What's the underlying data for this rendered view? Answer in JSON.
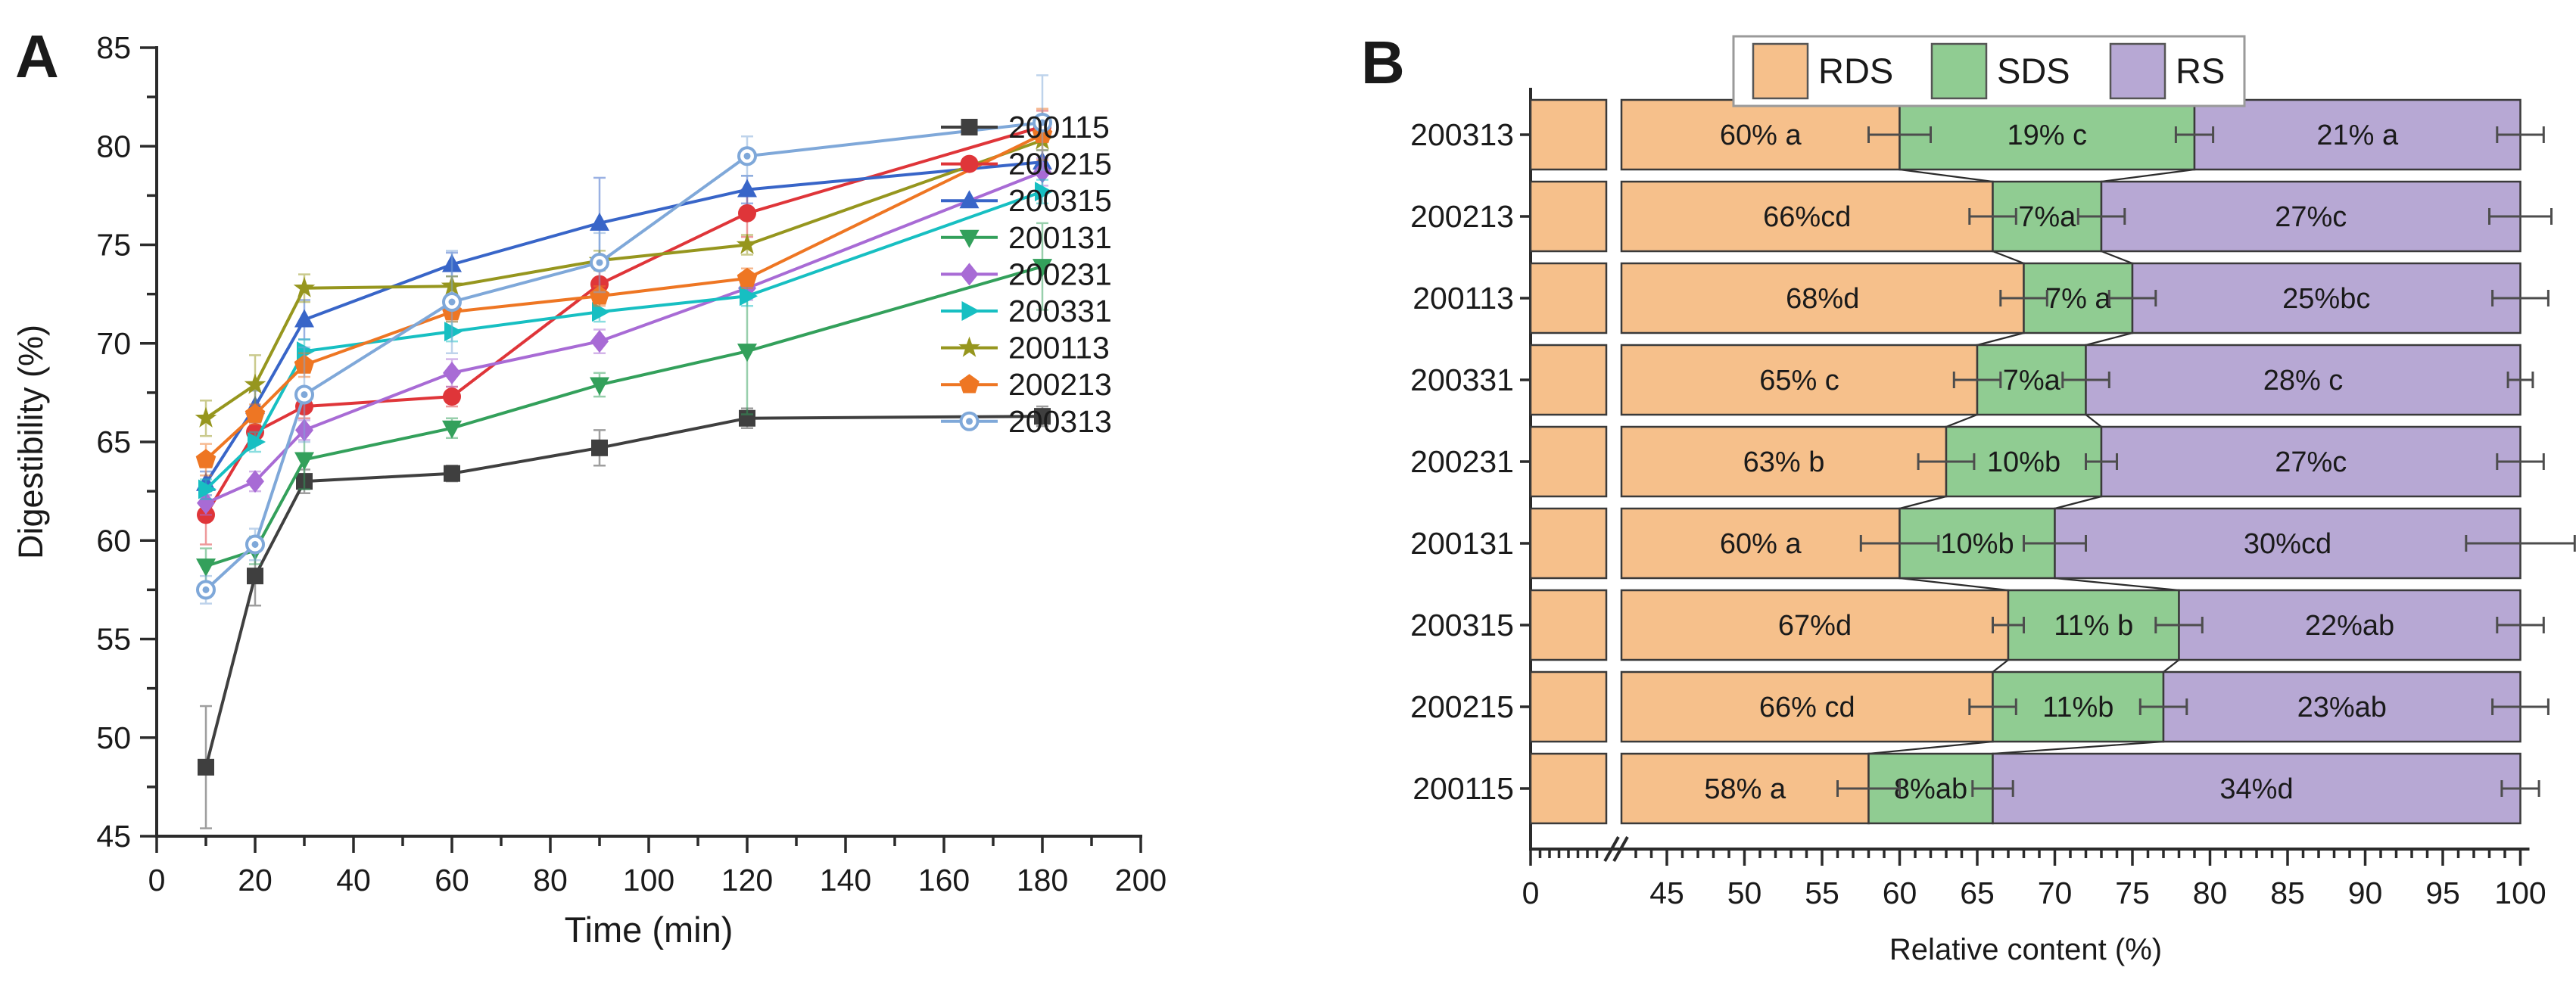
{
  "figure": {
    "background": "#ffffff",
    "panels": [
      "A",
      "B"
    ]
  },
  "chart_data": [
    {
      "type": "line",
      "panel_letter": "A",
      "title": "",
      "xlabel": "Time (min)",
      "ylabel": "Digestibility (%)",
      "x": [
        10,
        20,
        30,
        60,
        90,
        120,
        180
      ],
      "xlim": [
        0,
        200
      ],
      "ylim": [
        45,
        85
      ],
      "x_major_tick": 20,
      "x_minor_tick": 10,
      "y_major_tick": 5,
      "y_minor_tick": 2.5,
      "grid": false,
      "legend_position": "right",
      "series": [
        {
          "name": "200115",
          "color": "#3f3f3f",
          "marker": "square",
          "values": [
            48.5,
            58.2,
            63.0,
            63.4,
            64.7,
            66.2,
            66.3
          ],
          "errors": [
            3.1,
            1.5,
            0.6,
            0.4,
            0.9,
            0.5,
            0.5
          ]
        },
        {
          "name": "200215",
          "color": "#df3539",
          "marker": "circle",
          "values": [
            61.3,
            65.5,
            66.8,
            67.3,
            73.0,
            76.6,
            81.0
          ],
          "errors": [
            1.5,
            0.6,
            0.6,
            0.5,
            0.8,
            1.2,
            0.8
          ]
        },
        {
          "name": "200315",
          "color": "#3865c8",
          "marker": "triangle-up",
          "values": [
            62.9,
            66.8,
            71.2,
            74.0,
            76.1,
            77.8,
            79.2
          ],
          "errors": [
            0.6,
            0.8,
            1.0,
            0.6,
            2.3,
            0.7,
            0.6
          ]
        },
        {
          "name": "200131",
          "color": "#33a05b",
          "marker": "triangle-down",
          "values": [
            58.7,
            59.5,
            64.1,
            65.7,
            67.9,
            69.6,
            73.9
          ],
          "errors": [
            0.9,
            0.7,
            1.5,
            0.5,
            0.6,
            3.2,
            2.2
          ]
        },
        {
          "name": "200231",
          "color": "#a86bd5",
          "marker": "diamond",
          "values": [
            61.9,
            63.0,
            65.6,
            68.5,
            70.1,
            72.8,
            78.7
          ],
          "errors": [
            0.6,
            0.5,
            0.5,
            0.7,
            0.6,
            0.6,
            0.7
          ]
        },
        {
          "name": "200331",
          "color": "#17bfc2",
          "marker": "triangle-right",
          "values": [
            62.6,
            65.0,
            69.6,
            70.6,
            71.6,
            72.4,
            77.7
          ],
          "errors": [
            0.5,
            0.5,
            0.6,
            0.5,
            0.5,
            0.5,
            0.6
          ]
        },
        {
          "name": "200113",
          "color": "#96961e",
          "marker": "star",
          "values": [
            66.2,
            67.9,
            72.8,
            72.9,
            74.2,
            75.0,
            80.3
          ],
          "errors": [
            0.9,
            1.5,
            0.7,
            0.5,
            0.5,
            0.5,
            0.5
          ]
        },
        {
          "name": "200213",
          "color": "#ee7623",
          "marker": "pentagon",
          "values": [
            64.1,
            66.4,
            68.9,
            71.6,
            72.4,
            73.3,
            80.6
          ],
          "errors": [
            0.8,
            0.5,
            0.6,
            0.5,
            0.5,
            0.5,
            1.3
          ]
        },
        {
          "name": "200313",
          "color": "#7fa8d9",
          "marker": "circle-open-dot",
          "values": [
            57.5,
            59.8,
            67.4,
            72.1,
            74.1,
            79.5,
            81.2
          ],
          "errors": [
            0.7,
            0.8,
            2.4,
            2.6,
            1.5,
            1.0,
            2.4
          ]
        }
      ]
    },
    {
      "type": "bar",
      "panel_letter": "B",
      "orientation": "horizontal",
      "stacked": true,
      "title": "",
      "xlabel": "Relative content (%)",
      "axis_break_between": [
        0,
        45
      ],
      "xticks": [
        0,
        45,
        50,
        55,
        60,
        65,
        70,
        75,
        80,
        85,
        90,
        95,
        100
      ],
      "legend_position": "top",
      "categories": [
        "200313",
        "200213",
        "200113",
        "200331",
        "200231",
        "200131",
        "200315",
        "200215",
        "200115"
      ],
      "series": [
        {
          "name": "RDS",
          "color": "#f6c08b",
          "values": [
            60,
            66,
            68,
            65,
            63,
            60,
            67,
            66,
            58
          ],
          "labels": [
            "60% a",
            "66%cd",
            "68%d",
            "65% c",
            "63% b",
            "60% a",
            "67%d",
            "66% cd",
            "58% a"
          ],
          "errors": [
            2.0,
            1.5,
            1.5,
            1.5,
            1.8,
            2.5,
            1.0,
            1.5,
            2.0
          ]
        },
        {
          "name": "SDS",
          "color": "#90cc92",
          "values": [
            19,
            7,
            7,
            7,
            10,
            10,
            11,
            11,
            8
          ],
          "labels": [
            "19% c",
            "7%a",
            "7% a",
            "7%a",
            "10%b",
            "10%b",
            "11% b",
            "11%b",
            "8%ab"
          ],
          "errors": [
            1.2,
            1.5,
            1.5,
            1.5,
            1.0,
            2.0,
            1.5,
            1.5,
            1.3
          ]
        },
        {
          "name": "RS",
          "color": "#b7a8d4",
          "values": [
            21,
            27,
            25,
            28,
            27,
            30,
            22,
            23,
            34
          ],
          "labels": [
            "21% a",
            "27%c",
            "25%bc",
            "28% c",
            "27%c",
            "30%cd",
            "22%ab",
            "23%ab",
            "34%d"
          ],
          "errors": [
            1.5,
            2.0,
            1.8,
            0.8,
            1.5,
            3.5,
            1.5,
            1.8,
            1.2
          ]
        }
      ]
    }
  ]
}
